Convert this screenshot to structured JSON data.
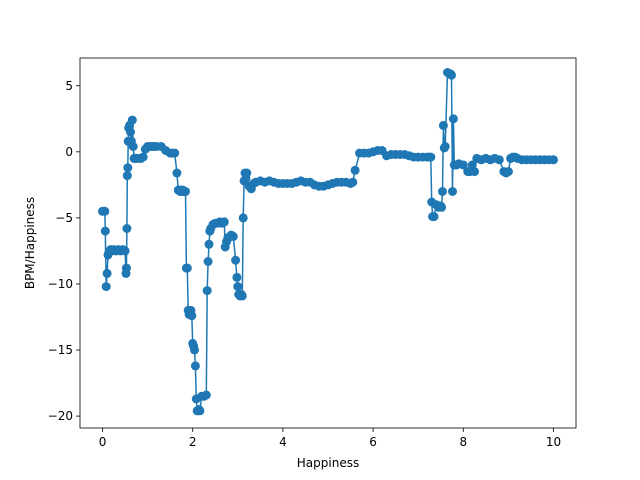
{
  "chart_data": {
    "type": "line",
    "title": "",
    "xlabel": "Happiness",
    "ylabel": "BPM/Happiness",
    "xlim": [
      -0.5,
      10.5
    ],
    "ylim": [
      -20.9,
      7.1
    ],
    "xticks": [
      0,
      2,
      4,
      6,
      8,
      10
    ],
    "yticks": [
      5,
      0,
      -5,
      -10,
      -15,
      -20
    ],
    "grid": false,
    "series_color": "#1f77b4",
    "series": [
      {
        "x": [
          0.0,
          0.05,
          0.06,
          0.08,
          0.1,
          0.12,
          0.14,
          0.16,
          0.18,
          0.2,
          0.25,
          0.3,
          0.35,
          0.4,
          0.45,
          0.5,
          0.52,
          0.53,
          0.54,
          0.55,
          0.56,
          0.57,
          0.58,
          0.6,
          0.62,
          0.64,
          0.66,
          0.68,
          0.7,
          0.72,
          0.75,
          0.8,
          0.85,
          0.9,
          0.95,
          1.0,
          1.05,
          1.1,
          1.15,
          1.2,
          1.3,
          1.4,
          1.5,
          1.55,
          1.6,
          1.65,
          1.68,
          1.7,
          1.72,
          1.74,
          1.76,
          1.78,
          1.8,
          1.82,
          1.84,
          1.86,
          1.88,
          1.9,
          1.92,
          1.94,
          1.96,
          1.98,
          2.0,
          2.02,
          2.04,
          2.06,
          2.08,
          2.1,
          2.12,
          2.14,
          2.16,
          2.2,
          2.25,
          2.3,
          2.32,
          2.34,
          2.36,
          2.38,
          2.4,
          2.45,
          2.5,
          2.55,
          2.6,
          2.65,
          2.7,
          2.72,
          2.75,
          2.78,
          2.8,
          2.85,
          2.9,
          2.95,
          2.98,
          3.0,
          3.02,
          3.05,
          3.08,
          3.1,
          3.12,
          3.14,
          3.16,
          3.18,
          3.2,
          3.25,
          3.3,
          3.35,
          3.4,
          3.5,
          3.6,
          3.7,
          3.8,
          3.9,
          4.0,
          4.1,
          4.2,
          4.3,
          4.4,
          4.5,
          4.6,
          4.7,
          4.8,
          4.9,
          5.0,
          5.1,
          5.2,
          5.3,
          5.4,
          5.5,
          5.55,
          5.6,
          5.7,
          5.8,
          5.9,
          6.0,
          6.1,
          6.2,
          6.3,
          6.4,
          6.5,
          6.6,
          6.7,
          6.8,
          6.9,
          7.0,
          7.1,
          7.2,
          7.25,
          7.28,
          7.3,
          7.32,
          7.35,
          7.4,
          7.45,
          7.5,
          7.52,
          7.54,
          7.56,
          7.58,
          7.6,
          7.65,
          7.7,
          7.72,
          7.74,
          7.76,
          7.78,
          7.8,
          7.85,
          7.9,
          8.0,
          8.1,
          8.15,
          8.2,
          8.25,
          8.3,
          8.4,
          8.5,
          8.6,
          8.7,
          8.8,
          8.9,
          8.95,
          9.0,
          9.05,
          9.1,
          9.15,
          9.2,
          9.3,
          9.4,
          9.5,
          9.6,
          9.7,
          9.8,
          9.9,
          10.0
        ],
        "y": [
          -4.5,
          -4.5,
          -6.0,
          -10.2,
          -9.2,
          -7.8,
          -7.6,
          -7.5,
          -7.4,
          -7.5,
          -7.4,
          -7.5,
          -7.4,
          -7.5,
          -7.4,
          -7.5,
          -9.2,
          -8.8,
          -5.8,
          -1.8,
          -1.2,
          0.8,
          1.8,
          2.0,
          1.5,
          0.8,
          2.4,
          0.4,
          -0.5,
          -0.5,
          -0.5,
          -0.5,
          -0.5,
          -0.4,
          0.2,
          0.4,
          0.4,
          0.4,
          0.4,
          0.4,
          0.4,
          0.1,
          -0.1,
          -0.1,
          -0.1,
          -1.6,
          -2.9,
          -2.9,
          -3.0,
          -2.9,
          -3.0,
          -2.9,
          -3.0,
          -3.0,
          -3.0,
          -8.8,
          -8.8,
          -12.0,
          -12.3,
          -12.2,
          -12.0,
          -12.4,
          -14.5,
          -14.7,
          -15.0,
          -16.2,
          -18.7,
          -19.6,
          -19.6,
          -19.5,
          -19.6,
          -18.5,
          -18.5,
          -18.4,
          -10.5,
          -8.3,
          -7.0,
          -6.0,
          -5.8,
          -5.5,
          -5.4,
          -5.4,
          -5.3,
          -5.4,
          -5.3,
          -7.2,
          -6.8,
          -6.5,
          -6.5,
          -6.3,
          -6.4,
          -8.2,
          -9.5,
          -10.2,
          -10.8,
          -10.9,
          -10.8,
          -10.9,
          -5.0,
          -2.2,
          -1.6,
          -2.0,
          -1.6,
          -2.6,
          -2.8,
          -2.4,
          -2.3,
          -2.2,
          -2.3,
          -2.2,
          -2.3,
          -2.4,
          -2.4,
          -2.4,
          -2.4,
          -2.3,
          -2.2,
          -2.3,
          -2.3,
          -2.5,
          -2.6,
          -2.6,
          -2.5,
          -2.4,
          -2.3,
          -2.3,
          -2.3,
          -2.4,
          -2.3,
          -1.4,
          -0.1,
          -0.1,
          -0.1,
          0.0,
          0.1,
          0.1,
          -0.3,
          -0.2,
          -0.2,
          -0.2,
          -0.2,
          -0.3,
          -0.4,
          -0.4,
          -0.4,
          -0.4,
          -0.4,
          -0.4,
          -3.8,
          -4.9,
          -4.9,
          -4.0,
          -4.2,
          -4.1,
          -4.2,
          -3.0,
          2.0,
          0.3,
          0.4,
          6.0,
          5.9,
          5.9,
          5.8,
          -3.0,
          2.5,
          -1.0,
          -1.0,
          -0.9,
          -1.0,
          -1.5,
          -1.5,
          -1.0,
          -1.5,
          -0.5,
          -0.6,
          -0.5,
          -0.6,
          -0.5,
          -0.6,
          -1.5,
          -1.6,
          -1.5,
          -0.5,
          -0.4,
          -0.4,
          -0.5,
          -0.6,
          -0.6,
          -0.6,
          -0.6,
          -0.6,
          -0.6,
          -0.6,
          -0.6
        ]
      }
    ]
  }
}
